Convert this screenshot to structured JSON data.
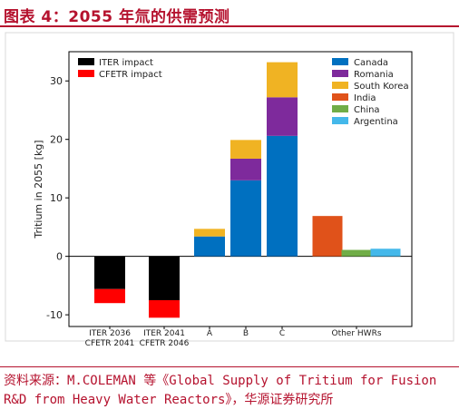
{
  "header": {
    "title": "图表 4：2055 年氚的供需预测"
  },
  "source": {
    "line1": "资料来源：M.COLEMAN 等《Global Supply of Tritium for Fusion",
    "line2": "R&D from Heavy Water Reactors》，华源证券研究所"
  },
  "chart_data": {
    "type": "bar",
    "title": "",
    "xlabel": "",
    "ylabel": "Tritium in 2055 [kg]",
    "ylim": [
      -12,
      35
    ],
    "yticks": [
      -10,
      0,
      10,
      20,
      30
    ],
    "grid": false,
    "legend_positions": [
      "top-left",
      "top-right"
    ],
    "categories": [
      "ITER 2036\nCFETR 2041",
      "ITER 2041\nCFETR 2046",
      "A",
      "B",
      "C",
      "Other HWRs"
    ],
    "series": [
      {
        "name": "ITER impact",
        "color": "#000000",
        "values": [
          -5.6,
          -7.5,
          0,
          0,
          0,
          0
        ]
      },
      {
        "name": "CFETR impact",
        "color": "#ff0000",
        "values": [
          -2.4,
          -3.0,
          0,
          0,
          0,
          0
        ]
      },
      {
        "name": "Canada",
        "color": "#0070c0",
        "values": [
          0,
          0,
          3.4,
          13.0,
          20.6,
          0
        ]
      },
      {
        "name": "Romania",
        "color": "#7e2a9c",
        "values": [
          0,
          0,
          0,
          3.7,
          6.6,
          0
        ]
      },
      {
        "name": "South Korea",
        "color": "#f0b323",
        "values": [
          0,
          0,
          1.3,
          3.2,
          6.0,
          0
        ]
      },
      {
        "name": "India",
        "color": "#e0521a",
        "values": [
          0,
          0,
          0,
          0,
          0,
          6.9
        ]
      },
      {
        "name": "China",
        "color": "#70ad47",
        "values": [
          0,
          0,
          0,
          0,
          0,
          1.1
        ]
      },
      {
        "name": "Argentina",
        "color": "#44b8ea",
        "values": [
          0,
          0,
          0,
          0,
          0,
          1.3
        ]
      }
    ]
  }
}
